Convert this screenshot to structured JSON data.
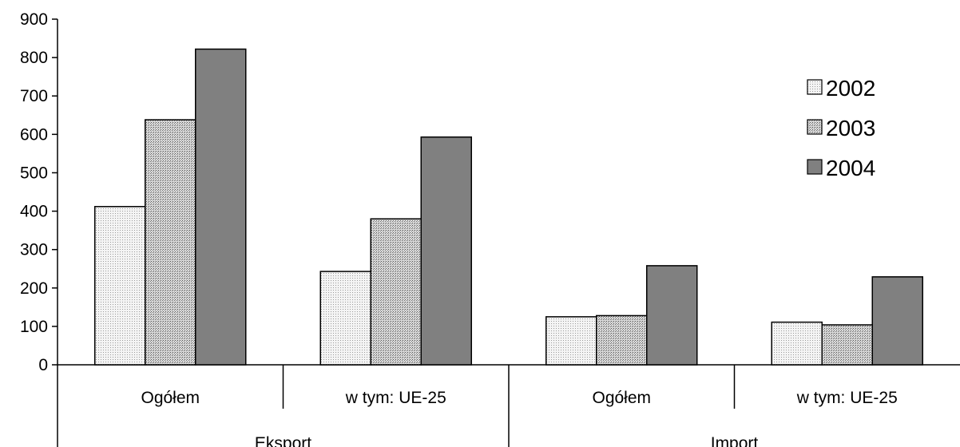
{
  "chart_data": {
    "type": "bar",
    "groups": [
      {
        "label": "Eksport",
        "categories": [
          "Ogółem",
          "w tym: UE-25"
        ]
      },
      {
        "label": "Import",
        "categories": [
          "Ogółem",
          "w tym: UE-25"
        ]
      }
    ],
    "categories": [
      "Ogółem",
      "w tym: UE-25",
      "Ogółem",
      "w tym: UE-25"
    ],
    "series": [
      {
        "name": "2002",
        "values": [
          412,
          243,
          125,
          111
        ],
        "color": "#ffffff",
        "pattern": "light-dots"
      },
      {
        "name": "2003",
        "values": [
          638,
          380,
          128,
          104
        ],
        "color": "#c8c8c8",
        "pattern": "dense-dots"
      },
      {
        "name": "2004",
        "values": [
          822,
          593,
          258,
          229
        ],
        "color": "#808080",
        "pattern": "solid"
      }
    ],
    "ylim": [
      0,
      900
    ],
    "yticks": [
      0,
      100,
      200,
      300,
      400,
      500,
      600,
      700,
      800,
      900
    ],
    "grid": false,
    "legend_position": "right"
  }
}
